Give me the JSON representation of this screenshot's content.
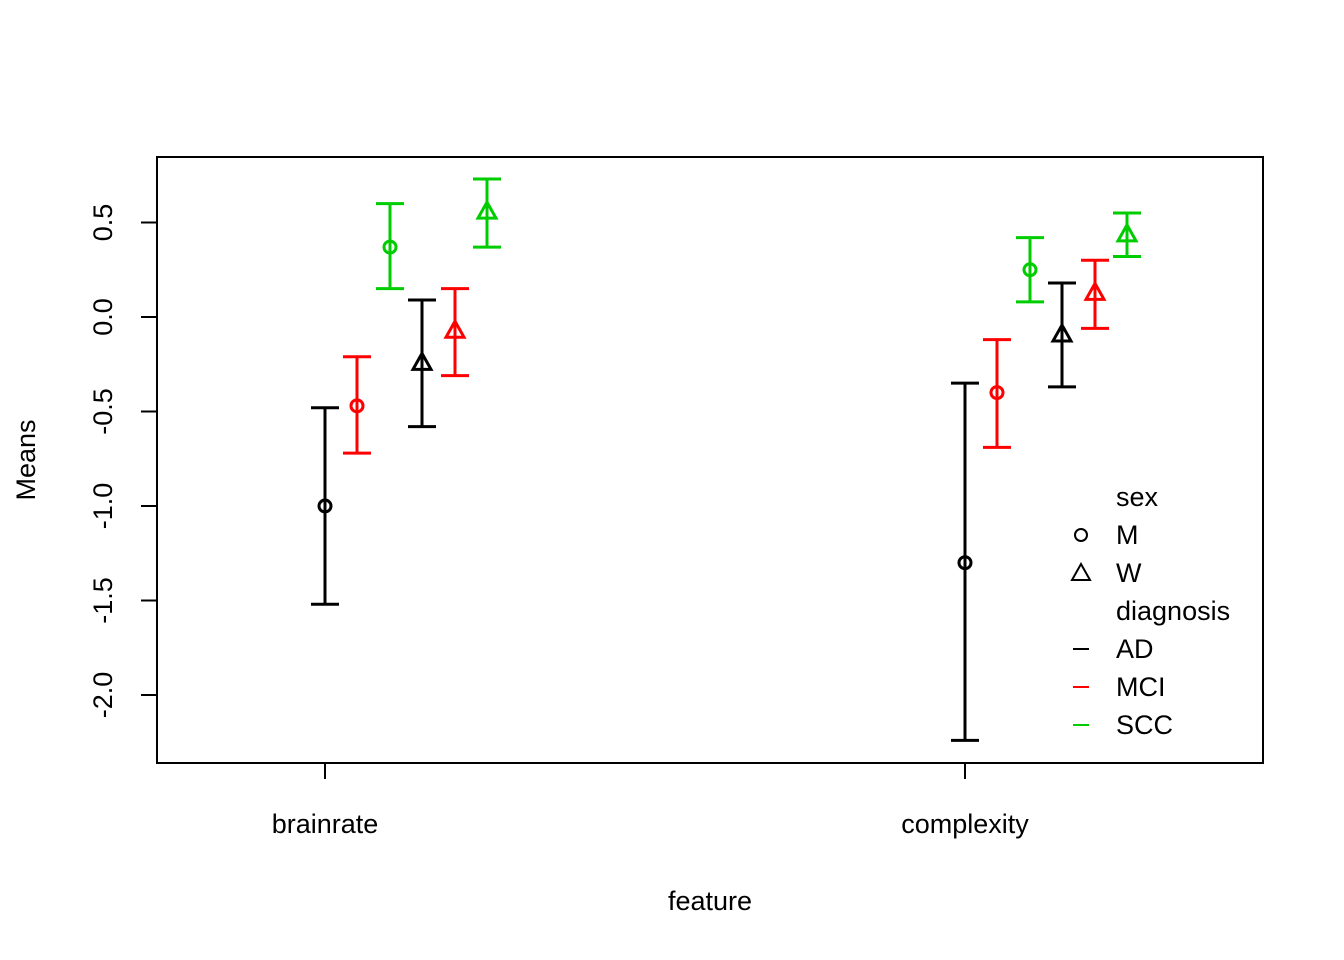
{
  "chart_data": {
    "type": "scatter",
    "title": "",
    "xlabel": "feature",
    "ylabel": "Means",
    "categories": [
      "brainrate",
      "complexity"
    ],
    "ylim": [
      -2.3,
      0.85
    ],
    "yticks": [
      -2.0,
      -1.5,
      -1.0,
      -0.5,
      0.0,
      0.5
    ],
    "ytick_labels": [
      "-2.0",
      "-1.5",
      "-1.0",
      "-0.5",
      "0.0",
      "0.5"
    ],
    "grid": false,
    "legend_position": "bottom-right",
    "legend": {
      "shape_title": "sex",
      "shapes": [
        {
          "label": "M",
          "marker": "circle"
        },
        {
          "label": "W",
          "marker": "triangle"
        }
      ],
      "color_title": "diagnosis",
      "colors": [
        {
          "label": "AD",
          "color": "#000000"
        },
        {
          "label": "MCI",
          "color": "#FF0000"
        },
        {
          "label": "SCC",
          "color": "#00CD00"
        }
      ]
    },
    "series": [
      {
        "sex": "M",
        "diagnosis": "AD",
        "marker": "circle",
        "color": "#000000",
        "points": [
          {
            "x": "brainrate",
            "mean": -1.0,
            "lower": -1.52,
            "upper": -0.48
          },
          {
            "x": "complexity",
            "mean": -1.3,
            "lower": -2.24,
            "upper": -0.35
          }
        ]
      },
      {
        "sex": "M",
        "diagnosis": "MCI",
        "marker": "circle",
        "color": "#FF0000",
        "points": [
          {
            "x": "brainrate",
            "mean": -0.47,
            "lower": -0.72,
            "upper": -0.21
          },
          {
            "x": "complexity",
            "mean": -0.4,
            "lower": -0.69,
            "upper": -0.12
          }
        ]
      },
      {
        "sex": "M",
        "diagnosis": "SCC",
        "marker": "circle",
        "color": "#00CD00",
        "points": [
          {
            "x": "brainrate",
            "mean": 0.37,
            "lower": 0.15,
            "upper": 0.6
          },
          {
            "x": "complexity",
            "mean": 0.25,
            "lower": 0.08,
            "upper": 0.42
          }
        ]
      },
      {
        "sex": "W",
        "diagnosis": "AD",
        "marker": "triangle",
        "color": "#000000",
        "points": [
          {
            "x": "brainrate",
            "mean": -0.24,
            "lower": -0.58,
            "upper": 0.09
          },
          {
            "x": "complexity",
            "mean": -0.09,
            "lower": -0.37,
            "upper": 0.18
          }
        ]
      },
      {
        "sex": "W",
        "diagnosis": "MCI",
        "marker": "triangle",
        "color": "#FF0000",
        "points": [
          {
            "x": "brainrate",
            "mean": -0.07,
            "lower": -0.31,
            "upper": 0.15
          },
          {
            "x": "complexity",
            "mean": 0.13,
            "lower": -0.06,
            "upper": 0.3
          }
        ]
      },
      {
        "sex": "W",
        "diagnosis": "SCC",
        "marker": "triangle",
        "color": "#00CD00",
        "points": [
          {
            "x": "brainrate",
            "mean": 0.56,
            "lower": 0.37,
            "upper": 0.73
          },
          {
            "x": "complexity",
            "mean": 0.44,
            "lower": 0.32,
            "upper": 0.55
          }
        ]
      }
    ]
  }
}
